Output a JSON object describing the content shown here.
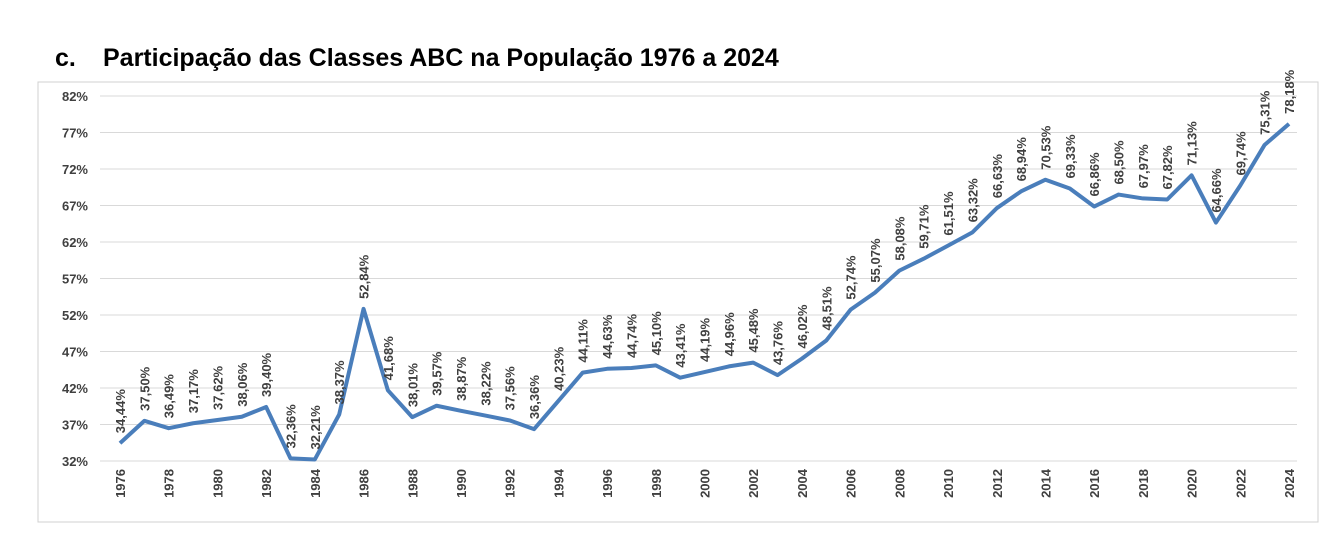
{
  "chart_data": {
    "type": "line",
    "panel": "c.",
    "title": "Participação das Classes ABC na População 1976 a 2024",
    "x": [
      1976,
      1977,
      1978,
      1979,
      1980,
      1981,
      1982,
      1983,
      1984,
      1985,
      1986,
      1987,
      1988,
      1989,
      1990,
      1991,
      1992,
      1993,
      1994,
      1995,
      1996,
      1997,
      1998,
      1999,
      2000,
      2001,
      2002,
      2003,
      2004,
      2005,
      2006,
      2007,
      2008,
      2009,
      2010,
      2011,
      2012,
      2013,
      2014,
      2015,
      2016,
      2017,
      2018,
      2019,
      2020,
      2021,
      2022,
      2023,
      2024
    ],
    "xlim": [
      1976,
      2024
    ],
    "xticks": [
      1976,
      1978,
      1980,
      1982,
      1984,
      1986,
      1988,
      1990,
      1992,
      1994,
      1996,
      1998,
      2000,
      2002,
      2004,
      2006,
      2008,
      2010,
      2012,
      2014,
      2016,
      2018,
      2020,
      2022,
      2024
    ],
    "ylim": [
      32,
      82
    ],
    "yticks": [
      {
        "value": 32,
        "label": "32%"
      },
      {
        "value": 37,
        "label": "37%"
      },
      {
        "value": 42,
        "label": "42%"
      },
      {
        "value": 47,
        "label": "47%"
      },
      {
        "value": 52,
        "label": "52%"
      },
      {
        "value": 57,
        "label": "57%"
      },
      {
        "value": 62,
        "label": "62%"
      },
      {
        "value": 67,
        "label": "67%"
      },
      {
        "value": 72,
        "label": "72%"
      },
      {
        "value": 77,
        "label": "77%"
      },
      {
        "value": 82,
        "label": "82%"
      }
    ],
    "grid": true,
    "series": [
      {
        "color": "#4a7ebb",
        "values": [
          34.44,
          37.5,
          36.49,
          37.17,
          37.62,
          38.06,
          39.4,
          32.36,
          32.21,
          38.37,
          52.84,
          41.68,
          38.01,
          39.57,
          38.87,
          38.22,
          37.56,
          36.36,
          40.23,
          44.11,
          44.63,
          44.74,
          45.1,
          43.41,
          44.19,
          44.96,
          45.48,
          43.76,
          46.02,
          48.51,
          52.74,
          55.07,
          58.08,
          59.71,
          61.51,
          63.32,
          66.63,
          68.94,
          70.53,
          69.33,
          66.86,
          68.5,
          67.97,
          67.82,
          71.13,
          64.66,
          69.74,
          75.31,
          78.18
        ],
        "value_labels": [
          "34,44%",
          "37,50%",
          "36,49%",
          "37,17%",
          "37,62%",
          "38,06%",
          "39,40%",
          "32,36%",
          "32,21%",
          "38,37%",
          "52,84%",
          "41,68%",
          "38,01%",
          "39,57%",
          "38,87%",
          "38,22%",
          "37,56%",
          "36,36%",
          "40,23%",
          "44,11%",
          "44,63%",
          "44,74%",
          "45,10%",
          "43,41%",
          "44,19%",
          "44,96%",
          "45,48%",
          "43,76%",
          "46,02%",
          "48,51%",
          "52,74%",
          "55,07%",
          "58,08%",
          "59,71%",
          "61,51%",
          "63,32%",
          "66,63%",
          "68,94%",
          "70,53%",
          "69,33%",
          "66,86%",
          "68,50%",
          "67,97%",
          "67,82%",
          "71,13%",
          "64,66%",
          "69,74%",
          "75,31%",
          "78,18%"
        ]
      }
    ]
  }
}
